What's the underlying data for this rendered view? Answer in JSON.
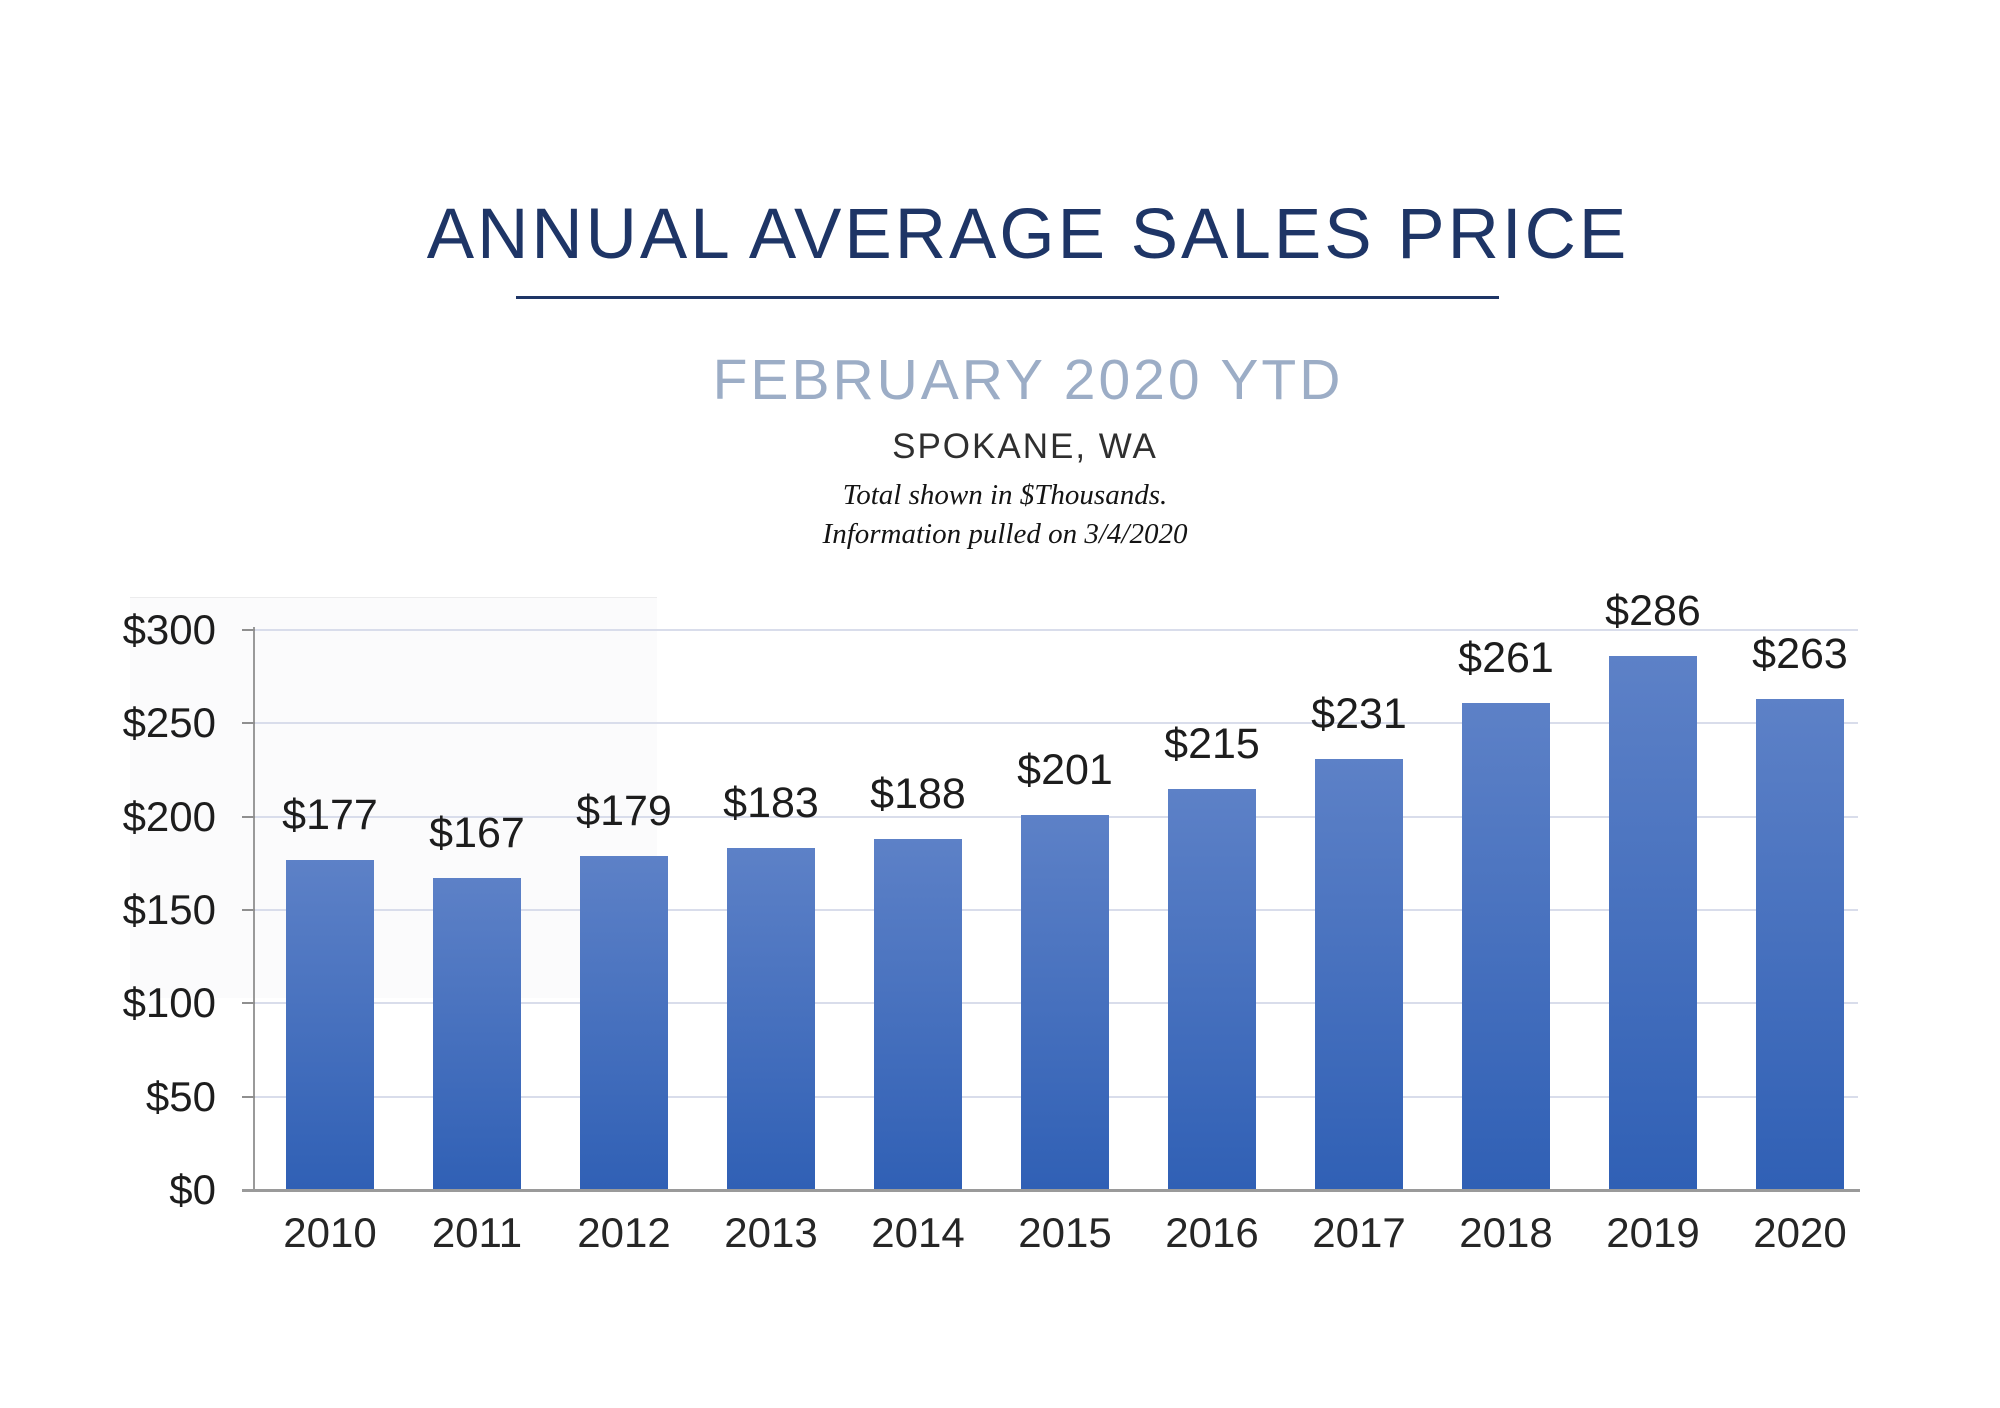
{
  "header": {
    "title": "ANNUAL AVERAGE SALES PRICE",
    "subtitle": "FEBRUARY 2020 YTD",
    "location": "SPOKANE, WA",
    "note_line1": "Total shown in $Thousands.",
    "note_line2": "Information pulled on 3/4/2020"
  },
  "colors": {
    "title_navy": "#1e3566",
    "subtitle_blue": "#9cadc6",
    "text_dark": "#1d1d1d",
    "axis_gray": "#9a9a9a",
    "gridline": "#d9ddeb",
    "bar_gradient_top": "#5d81c7",
    "bar_gradient_bottom": "#3060b5"
  },
  "chart_data": {
    "type": "bar",
    "title": "ANNUAL AVERAGE SALES PRICE",
    "subtitle": "FEBRUARY 2020 YTD",
    "region": "SPOKANE, WA",
    "units": "$Thousands",
    "categories": [
      "2010",
      "2011",
      "2012",
      "2013",
      "2014",
      "2015",
      "2016",
      "2017",
      "2018",
      "2019",
      "2020"
    ],
    "values": [
      177,
      167,
      179,
      183,
      188,
      201,
      215,
      231,
      261,
      286,
      263
    ],
    "value_labels": [
      "$177",
      "$167",
      "$179",
      "$183",
      "$188",
      "$201",
      "$215",
      "$231",
      "$261",
      "$286",
      "$263"
    ],
    "xlabel": "",
    "ylabel": "",
    "ylim": [
      0,
      300
    ],
    "ytick_step": 50,
    "ytick_values": [
      0,
      50,
      100,
      150,
      200,
      250,
      300
    ],
    "ytick_labels": [
      "$0",
      "$50",
      "$100",
      "$150",
      "$200",
      "$250",
      "$300"
    ],
    "grid": true,
    "legend": "none",
    "bar_style": "vertical gradient blue"
  }
}
